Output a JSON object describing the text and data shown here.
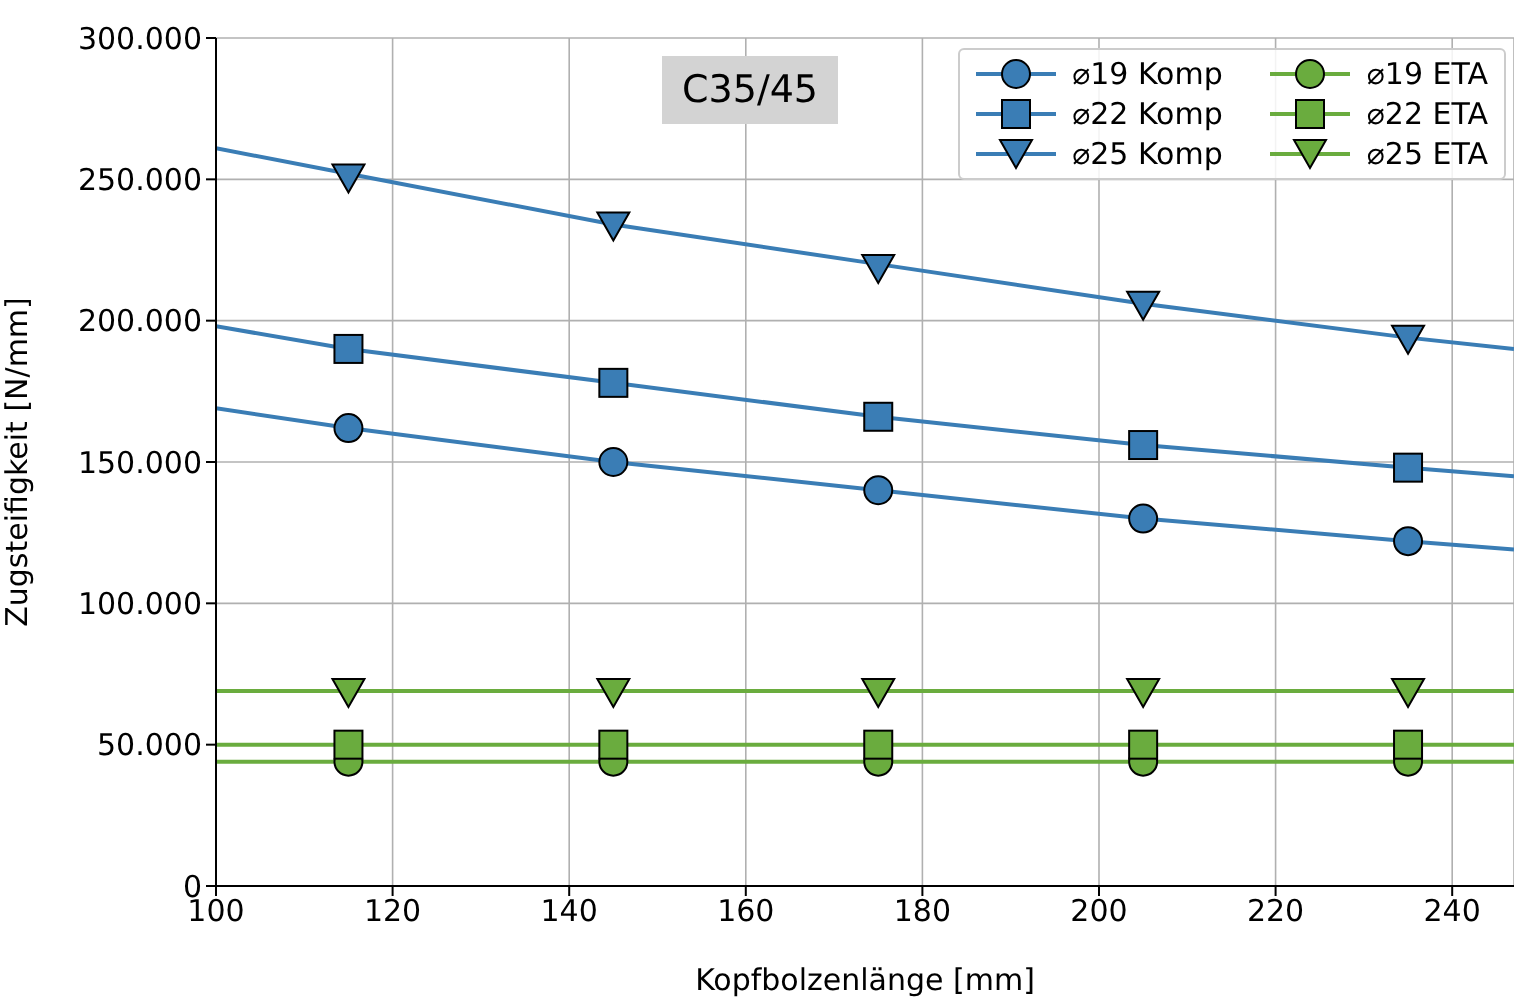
{
  "chart_data": {
    "type": "line",
    "xlabel": "Kopfbolzenlänge [mm]",
    "ylabel": "Zugsteifigkeit [N/mm]",
    "annotations": [
      "C35/45"
    ],
    "xlim": [
      100,
      247
    ],
    "xticks": [
      100,
      120,
      140,
      160,
      180,
      200,
      220,
      240
    ],
    "ylim": [
      0,
      300000
    ],
    "yticks": [
      {
        "value": 0,
        "label": "0"
      },
      {
        "value": 50000,
        "label": "50.000"
      },
      {
        "value": 100000,
        "label": "100.000"
      },
      {
        "value": 150000,
        "label": "150.000"
      },
      {
        "value": 200000,
        "label": "200.000"
      },
      {
        "value": 250000,
        "label": "250.000"
      },
      {
        "value": 300000,
        "label": "300.000"
      }
    ],
    "grid": true,
    "legend": "top right",
    "series": [
      {
        "name": "⌀19 Komp",
        "type": "scatter",
        "marker": "circle",
        "color": "#3a7db5",
        "x": [
          115,
          145,
          175,
          205,
          235
        ],
        "values": [
          162000,
          150000,
          140000,
          130000,
          122000
        ]
      },
      {
        "name": "⌀22 Komp",
        "type": "scatter",
        "marker": "square",
        "color": "#3a7db5",
        "x": [
          115,
          145,
          175,
          205,
          235
        ],
        "values": [
          190000,
          178000,
          166000,
          156000,
          148000
        ]
      },
      {
        "name": "⌀25 Komp",
        "type": "scatter",
        "marker": "triangle",
        "color": "#3a7db5",
        "x": [
          115,
          145,
          175,
          205,
          235
        ],
        "values": [
          251000,
          234000,
          219000,
          206000,
          194000
        ]
      },
      {
        "name": "⌀19 ETA",
        "type": "scatter",
        "marker": "circle",
        "color": "#6aac3e",
        "x": [
          115,
          145,
          175,
          205,
          235
        ],
        "values": [
          44000,
          44000,
          44000,
          44000,
          44000
        ]
      },
      {
        "name": "⌀22 ETA",
        "type": "scatter",
        "marker": "square",
        "color": "#6aac3e",
        "x": [
          115,
          145,
          175,
          205,
          235
        ],
        "values": [
          50000,
          50000,
          50000,
          50000,
          50000
        ]
      },
      {
        "name": "⌀25 ETA",
        "type": "scatter",
        "marker": "triangle",
        "color": "#6aac3e",
        "x": [
          115,
          145,
          175,
          205,
          235
        ],
        "values": [
          69000,
          69000,
          69000,
          69000,
          69000
        ]
      },
      {
        "marker": "none",
        "color": "#3a7db5",
        "x": [
          100,
          115,
          145,
          175,
          205,
          235,
          247
        ],
        "values": [
          169000,
          162000,
          150000,
          140000,
          130000,
          122000,
          119000
        ]
      },
      {
        "marker": "none",
        "color": "#3a7db5",
        "x": [
          100,
          115,
          145,
          175,
          205,
          235,
          247
        ],
        "values": [
          198000,
          190000,
          178000,
          166000,
          156000,
          148000,
          145000
        ]
      },
      {
        "marker": "none",
        "color": "#3a7db5",
        "x": [
          100,
          115,
          145,
          175,
          205,
          235,
          247
        ],
        "values": [
          261000,
          252000,
          234000,
          220000,
          206000,
          194000,
          190000
        ]
      },
      {
        "marker": "none",
        "color": "#6aac3e",
        "x": [
          100,
          247
        ],
        "values": [
          44000,
          44000
        ]
      },
      {
        "marker": "none",
        "color": "#6aac3e",
        "x": [
          100,
          247
        ],
        "values": [
          50000,
          50000
        ]
      },
      {
        "marker": "none",
        "color": "#6aac3e",
        "x": [
          100,
          247
        ],
        "values": [
          69000,
          69000
        ]
      }
    ]
  }
}
